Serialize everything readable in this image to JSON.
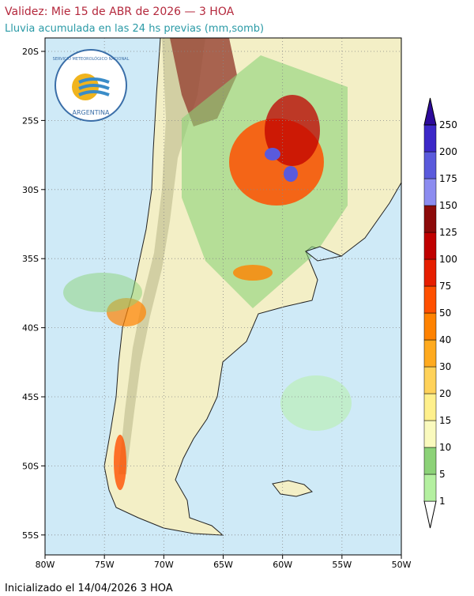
{
  "header": {
    "title": "Validez: Mie 15 de ABR de 2026 — 3 HOA",
    "subtitle": "Lluvia acumulada en las 24 hs previas (mm,somb)"
  },
  "logo": {
    "top_text": "SERVICIO METEOROLÓGICO NACIONAL",
    "bottom_text": "ARGENTINA"
  },
  "map": {
    "lat_labels": [
      "20S",
      "25S",
      "30S",
      "35S",
      "40S",
      "45S",
      "50S",
      "55S"
    ],
    "lon_labels": [
      "80W",
      "75W",
      "70W",
      "65W",
      "60W",
      "55W",
      "50W"
    ]
  },
  "colorbar": {
    "labels": [
      1,
      5,
      10,
      15,
      20,
      30,
      40,
      50,
      75,
      100,
      125,
      150,
      175,
      200,
      250
    ],
    "colors": [
      "#ffffff",
      "#b4f0a0",
      "#8cd278",
      "#fafabe",
      "#fff08c",
      "#ffd25a",
      "#ffaa1e",
      "#ff8200",
      "#ff5000",
      "#e61e00",
      "#c00000",
      "#8c0a0a",
      "#8c8cf0",
      "#5a5adc",
      "#3c28c8",
      "#2d0a9b"
    ]
  },
  "footer": {
    "initialized": "Inicializado el 14/04/2026 3 HOA"
  }
}
